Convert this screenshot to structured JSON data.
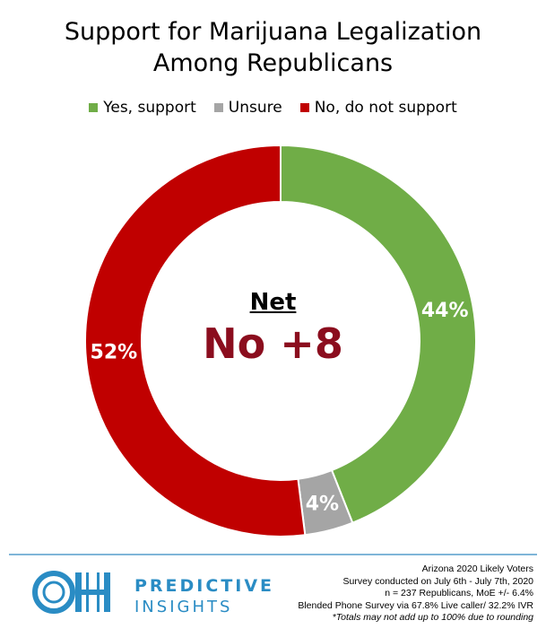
{
  "chart_data": {
    "type": "pie",
    "donut": true,
    "title_lines": [
      "Support for Marijuana Legalization",
      "Among Republicans"
    ],
    "categories": [
      "Yes, support",
      "Unsure",
      "No, do not support"
    ],
    "values": [
      44,
      4,
      52
    ],
    "value_labels": [
      "44%",
      "4%",
      "52%"
    ],
    "colors": [
      "#70ad47",
      "#a5a5a5",
      "#c00000"
    ],
    "legend_position": "top",
    "center_label": "Net",
    "center_value": "No +8",
    "center_value_color": "#8b0d1e"
  },
  "footer": {
    "brand_line1": "PREDICTIVE",
    "brand_line2": "INSIGHTS",
    "brand_color": "#2a8cc4",
    "meta_lines": [
      "Arizona 2020 Likely Voters",
      "Survey conducted on July 6th - July 7th, 2020",
      "n = 237 Republicans, MoE +/- 6.4%",
      "Blended Phone Survey via 67.8% Live caller/ 32.2% IVR",
      "*Totals may not add up to 100% due to rounding"
    ]
  }
}
